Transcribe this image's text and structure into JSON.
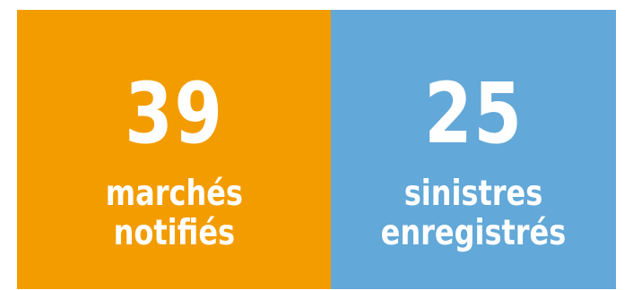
{
  "tiles": [
    {
      "value": "39",
      "label_lines": [
        "marchés",
        "notifiés"
      ],
      "background": "#f39c00"
    },
    {
      "value": "25",
      "label_lines": [
        "sinistres",
        "enregistrés"
      ],
      "background": "#62a8d8"
    }
  ],
  "text_color": "#ffffff"
}
